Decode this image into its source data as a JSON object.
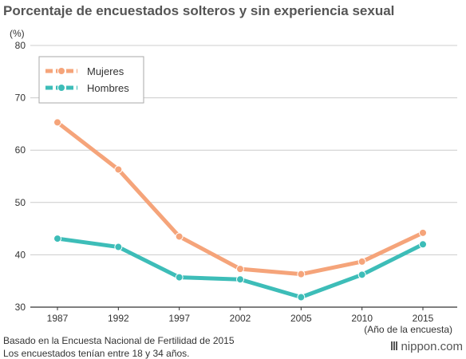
{
  "title": "Porcentaje de encuestados solteros y sin experiencia sexual",
  "footnotes": [
    "Basado en la Encuesta Nacional de Fertilidad de 2015",
    "Los encuestados tenían entre 18 y 34 años."
  ],
  "brand": "nippon.com",
  "colors": {
    "mujeres": "#f5a47a",
    "hombres": "#3dbdb8",
    "grid": "#cccccc",
    "axis": "#333333"
  },
  "chart_data": {
    "type": "line",
    "title": "Porcentaje de encuestados solteros y sin experiencia sexual",
    "ylabel": "(%)",
    "xlabel": "(Año de la encuesta)",
    "categories": [
      "1987",
      "1992",
      "1997",
      "2002",
      "2005",
      "2010",
      "2015"
    ],
    "ylim": [
      30,
      80
    ],
    "yticks": [
      30,
      40,
      50,
      60,
      70,
      80
    ],
    "grid": true,
    "legend": "top-left",
    "series": [
      {
        "name": "Mujeres",
        "color": "#f5a47a",
        "values": [
          65.3,
          56.3,
          43.5,
          37.3,
          36.3,
          38.7,
          44.2
        ]
      },
      {
        "name": "Hombres",
        "color": "#3dbdb8",
        "values": [
          43.1,
          41.5,
          35.7,
          35.3,
          31.9,
          36.2,
          42.0
        ]
      }
    ]
  }
}
